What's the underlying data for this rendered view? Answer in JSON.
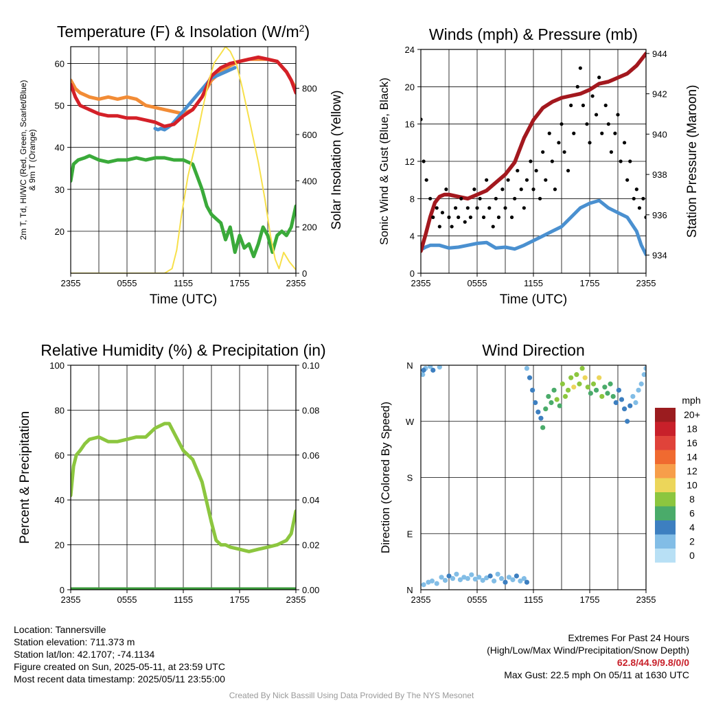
{
  "chart_data": [
    {
      "type": "line",
      "title": "Temperature (F) & Insolation (W/m²)",
      "xlabel": "Time (UTC)",
      "ylabel": "2m T, Td, HI/WC (Red, Green, Scarlet/Blue) & 9m T (Orange)",
      "ylabel_line1": "2m T, Td, HI/WC (Red, Green, Scarlet/Blue)",
      "ylabel_line2": "& 9m T (Orange)",
      "y2label": "Solar Insolation (Yellow)",
      "x_ticks": [
        "2355",
        "0555",
        "1155",
        "1755",
        "2355"
      ],
      "xlim": [
        0,
        24
      ],
      "ylim": [
        10,
        64
      ],
      "y_ticks": [
        20,
        30,
        40,
        50,
        60
      ],
      "y2lim": [
        0,
        980
      ],
      "y2_ticks": [
        0,
        200,
        400,
        600,
        800
      ],
      "grid": true,
      "series": [
        {
          "id": "t9m",
          "color": "#f28c36",
          "x": [
            0,
            0.5,
            1,
            2,
            3,
            4,
            5,
            6,
            7,
            8,
            9,
            10,
            11,
            12,
            13,
            14,
            15,
            16,
            17,
            18,
            19,
            20,
            21,
            22,
            23,
            23.5,
            24
          ],
          "values": [
            56,
            54,
            53,
            52,
            51.5,
            52,
            51.5,
            52,
            51.5,
            50,
            49.5,
            49,
            48.5,
            48,
            49,
            52,
            56,
            58,
            59.5,
            60.5,
            61,
            61,
            61,
            60.5,
            58,
            56,
            54
          ]
        },
        {
          "id": "hiwc",
          "color": "#4a90d0",
          "x": [
            9,
            9.3,
            9.6,
            10,
            10.4,
            10.8,
            11,
            15,
            15.5,
            16,
            16.5,
            17,
            17.5
          ],
          "values": [
            44.5,
            44.2,
            44.5,
            44.2,
            44.8,
            45.5,
            46,
            56.5,
            57,
            57.5,
            58,
            58.5,
            59
          ]
        },
        {
          "id": "t2m",
          "color": "#d42028",
          "x": [
            0,
            0.5,
            1,
            2,
            3,
            4,
            5,
            6,
            7,
            8,
            9,
            10,
            11,
            12,
            13,
            14,
            15,
            16,
            17,
            18,
            19,
            20,
            21,
            22,
            23,
            23.5,
            24
          ],
          "values": [
            55,
            52,
            50,
            49,
            48,
            47.5,
            47.5,
            47,
            47,
            46.5,
            46,
            45,
            45.5,
            47.5,
            49,
            52,
            57,
            59,
            60,
            60.5,
            61,
            61.5,
            61,
            60.5,
            58,
            56,
            53
          ]
        },
        {
          "id": "td",
          "color": "#3aaa3a",
          "x": [
            0,
            0.3,
            0.8,
            1.5,
            2,
            3,
            4,
            5,
            6,
            7,
            8,
            9,
            10,
            11,
            12,
            13,
            13.5,
            14,
            14.5,
            15,
            15.5,
            16,
            16.5,
            17,
            17.5,
            18,
            18.5,
            19,
            19.5,
            20,
            20.5,
            21,
            21.5,
            22,
            22.5,
            23,
            23.5,
            24
          ],
          "values": [
            32,
            36,
            37,
            37.5,
            38,
            37,
            36.5,
            37,
            37,
            37.5,
            37,
            37.5,
            37.5,
            37,
            37,
            36,
            33,
            30,
            26,
            24,
            23,
            22,
            18,
            21,
            15,
            19,
            16,
            17,
            14,
            17,
            21,
            19,
            15,
            19,
            20,
            19,
            21,
            26
          ]
        },
        {
          "id": "solar",
          "axis": "y2",
          "color": "#f7e04a",
          "x": [
            0,
            10,
            10.8,
            11.3,
            11.8,
            12.5,
            13.3,
            14,
            14.7,
            15.3,
            16,
            16.5,
            17,
            17.7,
            18.3,
            19,
            20,
            20.7,
            21.3,
            21.8,
            22.2,
            22.7,
            23.3,
            24
          ],
          "values": [
            0,
            0,
            20,
            100,
            250,
            420,
            560,
            700,
            830,
            910,
            950,
            980,
            960,
            900,
            800,
            670,
            480,
            320,
            160,
            60,
            20,
            90,
            50,
            15
          ]
        }
      ]
    },
    {
      "type": "scatter",
      "title": "Winds (mph) & Pressure (mb)",
      "xlabel": "Time (UTC)",
      "ylabel": "Sonic Wind & Gust (Blue, Black)",
      "y2label": "Station Pressure (Maroon)",
      "x_ticks": [
        "2355",
        "0555",
        "1155",
        "1755",
        "2355"
      ],
      "xlim": [
        0,
        24
      ],
      "ylim": [
        0,
        24
      ],
      "y_ticks": [
        0,
        4,
        8,
        12,
        16,
        20,
        24
      ],
      "y2lim": [
        933.1,
        944.2
      ],
      "y2_ticks": [
        934,
        936,
        938,
        940,
        942,
        944
      ],
      "grid": true,
      "series": [
        {
          "id": "wind",
          "color": "#4a90d0",
          "x": [
            0,
            0.5,
            1,
            2,
            3,
            4,
            5,
            6,
            7,
            8,
            9,
            10,
            11,
            12,
            13,
            14,
            15,
            16,
            17,
            18,
            19,
            20,
            21,
            22,
            23,
            23.5,
            24
          ],
          "values": [
            2.5,
            2.8,
            3,
            3,
            2.7,
            2.8,
            3,
            3.2,
            3.3,
            2.7,
            2.8,
            2.6,
            3,
            3.5,
            4,
            4.5,
            5,
            6,
            7,
            7.5,
            7.8,
            7,
            6.5,
            6,
            4.5,
            3,
            2
          ]
        },
        {
          "id": "pressure",
          "axis": "y2",
          "color": "#a3181e",
          "x": [
            0,
            0.5,
            1,
            1.5,
            2,
            2.5,
            3,
            4,
            5,
            6,
            7,
            8,
            9,
            10,
            11,
            12,
            13,
            14,
            15,
            16,
            17,
            18,
            19,
            20,
            21,
            22,
            23,
            23.5,
            24
          ],
          "values": [
            934.2,
            935,
            935.9,
            936.6,
            936.9,
            937,
            937,
            936.9,
            936.8,
            937,
            937.2,
            937.6,
            938,
            938.6,
            939.8,
            940.7,
            941.3,
            941.6,
            941.8,
            941.9,
            942,
            942.2,
            942.5,
            942.6,
            942.8,
            943,
            943.4,
            943.7,
            944
          ]
        },
        {
          "id": "gust",
          "color": "#000000",
          "x": [
            0,
            0.3,
            0.6,
            1,
            1.3,
            1.7,
            2,
            2.3,
            2.7,
            3,
            3.3,
            3.7,
            4,
            4.3,
            4.7,
            5,
            5.3,
            5.7,
            6,
            6.3,
            6.7,
            7,
            7.3,
            7.7,
            8,
            8.3,
            8.7,
            9,
            9.3,
            9.7,
            10,
            10.3,
            10.7,
            11,
            11.3,
            11.7,
            12,
            12.3,
            12.7,
            13,
            13.3,
            13.7,
            14,
            14.3,
            14.7,
            15,
            15.3,
            15.7,
            16,
            16.3,
            16.7,
            17,
            17.3,
            17.7,
            18,
            18.3,
            18.7,
            19,
            19.3,
            19.7,
            20,
            20.3,
            20.7,
            21,
            21.3,
            21.7,
            22,
            22.3,
            22.7,
            23,
            23.3,
            23.7,
            24
          ],
          "values": [
            16.5,
            12,
            10,
            8,
            6,
            7,
            5,
            6.5,
            9,
            6,
            5,
            7,
            6,
            8,
            5.5,
            7,
            6,
            9,
            7,
            8,
            6,
            10,
            7,
            5,
            8,
            6,
            9,
            7,
            10,
            6,
            8,
            11,
            9,
            7,
            10,
            12,
            9,
            11,
            8,
            13,
            10,
            15,
            12,
            9,
            14,
            16,
            13,
            11,
            18,
            15,
            20,
            22,
            18,
            16,
            14,
            19,
            17,
            21,
            15,
            18,
            16,
            13,
            15,
            17,
            12,
            14,
            10,
            12,
            8,
            9,
            7,
            8,
            6
          ]
        }
      ]
    },
    {
      "type": "line",
      "title": "Relative Humidity (%) & Precipitation (in)",
      "ylabel": "Percent & Precipitation",
      "x_ticks": [
        "2355",
        "0555",
        "1155",
        "1755",
        "2355"
      ],
      "xlim": [
        0,
        24
      ],
      "ylim": [
        0,
        100
      ],
      "y_ticks": [
        0,
        20,
        40,
        60,
        80,
        100
      ],
      "y2lim": [
        0,
        0.1
      ],
      "y2_ticks": [
        "0.00",
        "0.02",
        "0.04",
        "0.06",
        "0.08",
        "0.10"
      ],
      "grid": true,
      "series": [
        {
          "id": "rh",
          "color": "#8cc63f",
          "x": [
            0,
            0.3,
            0.6,
            1,
            1.5,
            2,
            3,
            4,
            5,
            6,
            7,
            8,
            9,
            10,
            10.5,
            11,
            12,
            13,
            14,
            15,
            15.5,
            16,
            16.5,
            17,
            18,
            19,
            20,
            21,
            22,
            23,
            23.5,
            24
          ],
          "values": [
            42,
            55,
            60,
            62,
            65,
            67,
            68,
            66,
            66,
            67,
            68,
            68,
            72,
            74,
            74,
            70,
            62,
            58,
            48,
            30,
            22,
            20,
            20,
            19,
            18,
            17,
            18,
            19,
            20,
            22,
            25,
            35
          ]
        },
        {
          "id": "precip",
          "axis": "y2",
          "color": "#3a9a3a",
          "x": [
            0,
            24
          ],
          "values": [
            0,
            0
          ]
        }
      ]
    },
    {
      "type": "scatter",
      "title": "Wind Direction",
      "ylabel": "Direction (Colored By Speed)",
      "x_ticks": [
        "2355",
        "0555",
        "1155",
        "1755",
        "2355"
      ],
      "xlim": [
        0,
        24
      ],
      "ylim": [
        0,
        360
      ],
      "y_ticks": [
        "N",
        "E",
        "S",
        "W",
        "N"
      ],
      "grid": true,
      "legend_title": "mph",
      "legend_labels": [
        "20+",
        "18",
        "16",
        "14",
        "12",
        "10",
        "8",
        "6",
        "4",
        "2",
        "0"
      ],
      "legend_colors": [
        "#9b1c1f",
        "#c8202a",
        "#e0433a",
        "#f06a30",
        "#f79e4a",
        "#ecd65a",
        "#8cc63f",
        "#4aab6a",
        "#3d7fc0",
        "#82bde6",
        "#b8e0f5"
      ],
      "points": [
        [
          0.2,
          345,
          2
        ],
        [
          0.5,
          355,
          2
        ],
        [
          1,
          358,
          2
        ],
        [
          1.3,
          352,
          3
        ],
        [
          2,
          357,
          2
        ],
        [
          0.3,
          352,
          3
        ],
        [
          0.3,
          8,
          2
        ],
        [
          0.8,
          12,
          2
        ],
        [
          1.2,
          14,
          2
        ],
        [
          1.7,
          10,
          2
        ],
        [
          2.2,
          20,
          2
        ],
        [
          2.6,
          15,
          2
        ],
        [
          3,
          22,
          3
        ],
        [
          3.4,
          18,
          2
        ],
        [
          3.8,
          25,
          2
        ],
        [
          4.2,
          16,
          2
        ],
        [
          4.6,
          20,
          2
        ],
        [
          5,
          18,
          2
        ],
        [
          5.4,
          24,
          2
        ],
        [
          5.8,
          17,
          2
        ],
        [
          6.2,
          20,
          2
        ],
        [
          6.6,
          15,
          2
        ],
        [
          7,
          19,
          2
        ],
        [
          7.4,
          22,
          3
        ],
        [
          7.8,
          14,
          2
        ],
        [
          8.2,
          25,
          2
        ],
        [
          8.6,
          18,
          2
        ],
        [
          9,
          12,
          3
        ],
        [
          9.4,
          20,
          2
        ],
        [
          9.8,
          16,
          2
        ],
        [
          10.2,
          22,
          3
        ],
        [
          10.6,
          14,
          2
        ],
        [
          11,
          18,
          2
        ],
        [
          11.3,
          12,
          4
        ],
        [
          11.3,
          355,
          2
        ],
        [
          11.6,
          340,
          3
        ],
        [
          11.9,
          320,
          4
        ],
        [
          12.2,
          300,
          4
        ],
        [
          12.5,
          285,
          4
        ],
        [
          12.8,
          275,
          4
        ],
        [
          13,
          260,
          5
        ],
        [
          13.3,
          290,
          5
        ],
        [
          13.6,
          310,
          5
        ],
        [
          13.9,
          300,
          6
        ],
        [
          14.2,
          320,
          6
        ],
        [
          14.5,
          305,
          7
        ],
        [
          14.8,
          295,
          6
        ],
        [
          15.1,
          330,
          8
        ],
        [
          15.4,
          310,
          7
        ],
        [
          15.7,
          320,
          8
        ],
        [
          16,
          340,
          8
        ],
        [
          16.3,
          325,
          9
        ],
        [
          16.6,
          345,
          8
        ],
        [
          16.9,
          330,
          8
        ],
        [
          17.2,
          355,
          7
        ],
        [
          17.5,
          340,
          9
        ],
        [
          17.8,
          325,
          8
        ],
        [
          18.1,
          315,
          6
        ],
        [
          18.4,
          330,
          7
        ],
        [
          18.7,
          320,
          6
        ],
        [
          19,
          340,
          9
        ],
        [
          19.3,
          310,
          7
        ],
        [
          19.6,
          325,
          6
        ],
        [
          19.9,
          315,
          5
        ],
        [
          20.2,
          330,
          6
        ],
        [
          20.5,
          310,
          5
        ],
        [
          20.8,
          300,
          4
        ],
        [
          21.1,
          320,
          4
        ],
        [
          21.4,
          305,
          3
        ],
        [
          21.7,
          290,
          4
        ],
        [
          22,
          270,
          3
        ],
        [
          22.3,
          295,
          3
        ],
        [
          22.6,
          310,
          2
        ],
        [
          22.9,
          300,
          2
        ],
        [
          23.2,
          320,
          2
        ],
        [
          23.5,
          330,
          2
        ],
        [
          23.8,
          345,
          2
        ],
        [
          24,
          355,
          2
        ]
      ]
    }
  ],
  "info": {
    "location": "Location: Tannersville",
    "elevation": "Station elevation: 711.373 m",
    "latlon": "Station lat/lon: 42.1707; -74.1134",
    "created": "Figure created on Sun, 2025-05-11, at 23:59 UTC",
    "recent": "Most recent data timestamp: 2025/05/11 23:55:00"
  },
  "extremes": {
    "heading": "Extremes For Past 24 Hours",
    "legend": "(High/Low/Max Wind/Precipitation/Snow Depth)",
    "values": "62.8/44.9/9.8/0/0",
    "gust": "Max Gust: 22.5 mph On 05/11 at 1630 UTC"
  },
  "credit": "Created By Nick Bassill Using Data Provided By The NYS Mesonet"
}
